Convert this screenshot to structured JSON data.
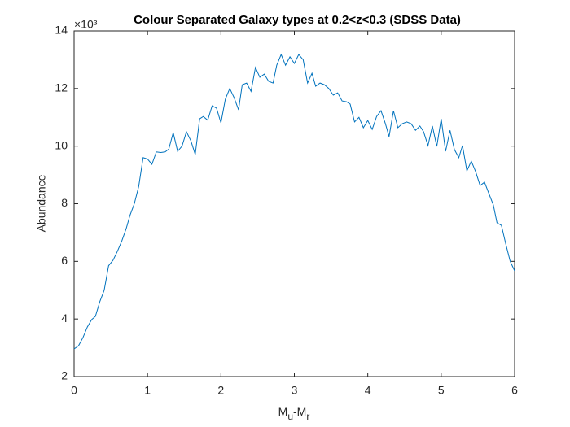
{
  "chart_data": {
    "type": "line",
    "title": "Colour Separated Galaxy types at 0.2<z<0.3 (SDSS Data)",
    "xlabel": [
      "M",
      "u",
      "-M",
      "r"
    ],
    "ylabel": "Abundance",
    "y_exponent": "×10³",
    "xlim": [
      0,
      6
    ],
    "xticks": [
      0,
      1,
      2,
      3,
      4,
      5,
      6
    ],
    "ylim": [
      2,
      14
    ],
    "yticks": [
      2,
      4,
      6,
      8,
      10,
      12,
      14
    ],
    "x": [
      0,
      0.06,
      0.12,
      0.18,
      0.24,
      0.29,
      0.35,
      0.41,
      0.47,
      0.53,
      0.59,
      0.65,
      0.71,
      0.76,
      0.82,
      0.88,
      0.94,
      1,
      1.06,
      1.12,
      1.18,
      1.24,
      1.29,
      1.35,
      1.41,
      1.47,
      1.53,
      1.59,
      1.65,
      1.71,
      1.76,
      1.82,
      1.88,
      1.94,
      2,
      2.06,
      2.12,
      2.18,
      2.24,
      2.29,
      2.35,
      2.41,
      2.47,
      2.53,
      2.59,
      2.65,
      2.71,
      2.76,
      2.82,
      2.88,
      2.94,
      3,
      3.06,
      3.12,
      3.18,
      3.24,
      3.29,
      3.35,
      3.41,
      3.47,
      3.53,
      3.59,
      3.65,
      3.71,
      3.76,
      3.82,
      3.88,
      3.94,
      4,
      4.06,
      4.12,
      4.18,
      4.24,
      4.29,
      4.35,
      4.41,
      4.47,
      4.53,
      4.59,
      4.65,
      4.71,
      4.76,
      4.82,
      4.88,
      4.94,
      5,
      5.06,
      5.12,
      5.18,
      5.24,
      5.29,
      5.35,
      5.41,
      5.47,
      5.53,
      5.59,
      5.65,
      5.71,
      5.76,
      5.82,
      5.88,
      5.94,
      6
    ],
    "series": [
      {
        "color": "#0072bd",
        "values": [
          2.96,
          3.07,
          3.35,
          3.72,
          3.98,
          4.09,
          4.6,
          5.0,
          5.85,
          6.04,
          6.35,
          6.71,
          7.14,
          7.59,
          8.0,
          8.6,
          9.6,
          9.55,
          9.37,
          9.8,
          9.78,
          9.8,
          9.9,
          10.47,
          9.82,
          10.0,
          10.5,
          10.19,
          9.71,
          10.95,
          11.03,
          10.9,
          11.4,
          11.32,
          10.81,
          11.63,
          12.0,
          11.68,
          11.26,
          12.13,
          12.19,
          11.9,
          12.73,
          12.39,
          12.5,
          12.25,
          12.19,
          12.81,
          13.18,
          12.81,
          13.1,
          12.87,
          13.18,
          13.0,
          12.19,
          12.53,
          12.08,
          12.19,
          12.13,
          12.0,
          11.77,
          11.85,
          11.57,
          11.54,
          11.46,
          10.84,
          11.0,
          10.64,
          10.89,
          10.58,
          11.03,
          11.23,
          10.78,
          10.33,
          11.23,
          10.64,
          10.78,
          10.84,
          10.78,
          10.55,
          10.7,
          10.5,
          10.02,
          10.7,
          9.99,
          10.95,
          9.82,
          10.55,
          9.88,
          9.6,
          10.02,
          9.14,
          9.48,
          9.11,
          8.63,
          8.75,
          8.35,
          7.96,
          7.34,
          7.25,
          6.6,
          6.0,
          5.67
        ]
      }
    ]
  }
}
